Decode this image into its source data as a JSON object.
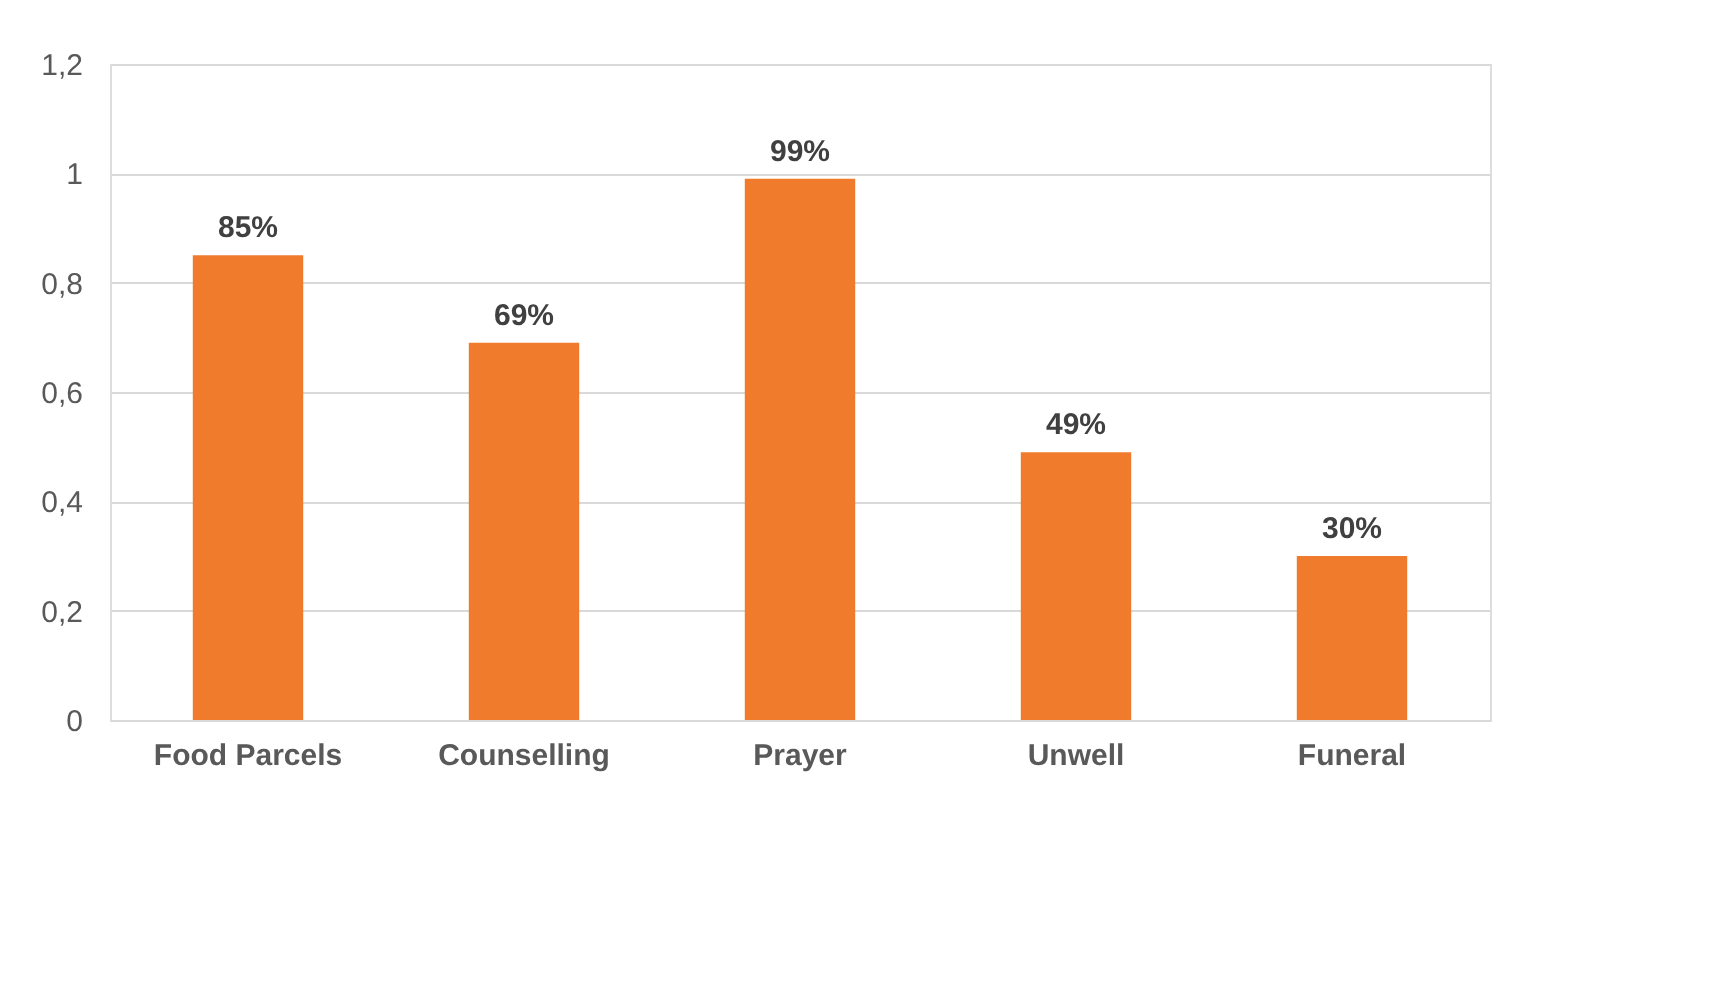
{
  "chart_data": {
    "type": "bar",
    "categories": [
      "Food Parcels",
      "Counselling",
      "Prayer",
      "Unwell",
      "Funeral"
    ],
    "values": [
      0.85,
      0.69,
      0.99,
      0.49,
      0.3
    ],
    "value_labels": [
      "85%",
      "69%",
      "99%",
      "49%",
      "30%"
    ],
    "color": "#f07b2c",
    "ylim": [
      0,
      1.2
    ],
    "yticks": [
      0,
      {
        "value": 0.2,
        "label": "0,2"
      },
      {
        "value": 0.4,
        "label": "0,4"
      },
      {
        "value": 0.6,
        "label": "0,6"
      },
      {
        "value": 0.8,
        "label": "0,8"
      },
      1,
      {
        "value": 1.2,
        "label": "1,2"
      }
    ],
    "grid": "y"
  }
}
